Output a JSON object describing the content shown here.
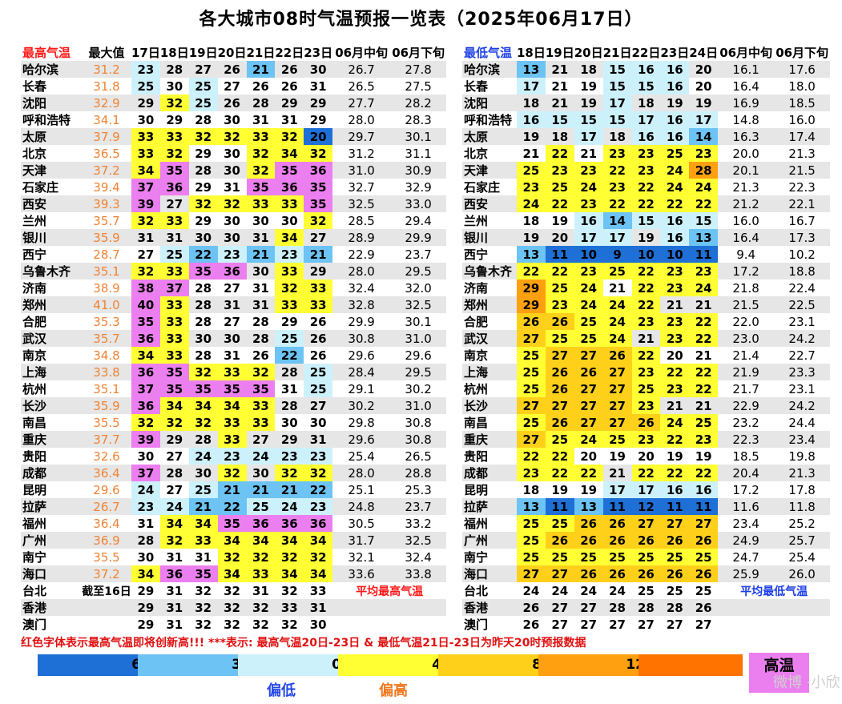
{
  "title": "各大城市08时气温预报一览表（2025年06月17日）",
  "max_table": {
    "header_label": "最高气温",
    "header_max": "最大值",
    "headers": [
      "17日",
      "18日",
      "19日",
      "20日",
      "21日",
      "22日",
      "23日",
      "06月中旬",
      "06月下旬"
    ],
    "rows": [
      {
        "city": "哈尔滨",
        "max": "31.2",
        "vals": [
          23,
          28,
          27,
          26,
          21,
          26,
          30
        ],
        "mid": "26.7",
        "late": "27.8"
      },
      {
        "city": "长春",
        "max": "31.8",
        "vals": [
          25,
          30,
          25,
          27,
          26,
          26,
          31
        ],
        "mid": "26.5",
        "late": "27.5"
      },
      {
        "city": "沈阳",
        "max": "32.9",
        "vals": [
          29,
          32,
          25,
          26,
          28,
          29,
          29
        ],
        "mid": "27.7",
        "late": "28.2"
      },
      {
        "city": "呼和浩特",
        "max": "34.1",
        "vals": [
          30,
          29,
          28,
          30,
          31,
          31,
          29
        ],
        "mid": "28.0",
        "late": "28.3"
      },
      {
        "city": "太原",
        "max": "37.9",
        "vals": [
          33,
          33,
          32,
          32,
          33,
          32,
          20
        ],
        "mid": "29.7",
        "late": "30.1"
      },
      {
        "city": "北京",
        "max": "36.5",
        "vals": [
          33,
          32,
          29,
          30,
          32,
          34,
          32
        ],
        "mid": "31.2",
        "late": "31.1"
      },
      {
        "city": "天津",
        "max": "37.2",
        "vals": [
          34,
          35,
          28,
          30,
          32,
          35,
          36
        ],
        "mid": "31.0",
        "late": "30.9"
      },
      {
        "city": "石家庄",
        "max": "39.4",
        "vals": [
          37,
          36,
          29,
          31,
          35,
          36,
          35
        ],
        "mid": "32.7",
        "late": "32.9"
      },
      {
        "city": "西安",
        "max": "39.3",
        "vals": [
          39,
          27,
          32,
          32,
          33,
          33,
          35
        ],
        "mid": "32.5",
        "late": "33.0"
      },
      {
        "city": "兰州",
        "max": "35.7",
        "vals": [
          32,
          33,
          29,
          30,
          30,
          30,
          32
        ],
        "mid": "28.5",
        "late": "29.4"
      },
      {
        "city": "银川",
        "max": "35.9",
        "vals": [
          31,
          31,
          30,
          30,
          31,
          34,
          27
        ],
        "mid": "28.9",
        "late": "29.9"
      },
      {
        "city": "西宁",
        "max": "28.7",
        "vals": [
          27,
          25,
          22,
          23,
          21,
          23,
          21
        ],
        "mid": "22.9",
        "late": "23.7"
      },
      {
        "city": "乌鲁木齐",
        "max": "35.1",
        "vals": [
          32,
          33,
          35,
          36,
          30,
          33,
          29
        ],
        "mid": "28.0",
        "late": "29.5"
      },
      {
        "city": "济南",
        "max": "38.9",
        "vals": [
          38,
          37,
          28,
          27,
          31,
          32,
          33
        ],
        "mid": "32.4",
        "late": "32.0"
      },
      {
        "city": "郑州",
        "max": "41.0",
        "vals": [
          40,
          33,
          28,
          31,
          31,
          33,
          33
        ],
        "mid": "32.8",
        "late": "32.5"
      },
      {
        "city": "合肥",
        "max": "35.3",
        "vals": [
          35,
          33,
          28,
          27,
          28,
          29,
          26
        ],
        "mid": "29.9",
        "late": "30.1"
      },
      {
        "city": "武汉",
        "max": "35.7",
        "vals": [
          36,
          33,
          30,
          30,
          28,
          25,
          26
        ],
        "mid": "30.8",
        "late": "31.0"
      },
      {
        "city": "南京",
        "max": "34.8",
        "vals": [
          34,
          33,
          28,
          31,
          26,
          22,
          26
        ],
        "mid": "29.6",
        "late": "29.6"
      },
      {
        "city": "上海",
        "max": "33.8",
        "vals": [
          36,
          35,
          32,
          33,
          32,
          28,
          25
        ],
        "mid": "28.4",
        "late": "29.5"
      },
      {
        "city": "杭州",
        "max": "35.1",
        "vals": [
          37,
          35,
          35,
          35,
          35,
          31,
          25
        ],
        "mid": "29.1",
        "late": "30.2"
      },
      {
        "city": "长沙",
        "max": "35.9",
        "vals": [
          36,
          34,
          34,
          34,
          33,
          28,
          27
        ],
        "mid": "30.2",
        "late": "31.0"
      },
      {
        "city": "南昌",
        "max": "35.5",
        "vals": [
          32,
          32,
          32,
          33,
          33,
          30,
          30
        ],
        "mid": "29.8",
        "late": "30.8"
      },
      {
        "city": "重庆",
        "max": "37.7",
        "vals": [
          39,
          29,
          28,
          33,
          27,
          29,
          31
        ],
        "mid": "29.6",
        "late": "30.8"
      },
      {
        "city": "贵阳",
        "max": "32.6",
        "vals": [
          30,
          27,
          24,
          23,
          24,
          23,
          23
        ],
        "mid": "25.4",
        "late": "26.5"
      },
      {
        "city": "成都",
        "max": "36.4",
        "vals": [
          37,
          28,
          30,
          32,
          30,
          32,
          32
        ],
        "mid": "28.0",
        "late": "28.8"
      },
      {
        "city": "昆明",
        "max": "29.6",
        "vals": [
          24,
          27,
          25,
          21,
          21,
          21,
          22
        ],
        "mid": "25.1",
        "late": "25.3"
      },
      {
        "city": "拉萨",
        "max": "26.7",
        "vals": [
          23,
          24,
          21,
          22,
          25,
          24,
          23
        ],
        "mid": "24.8",
        "late": "23.7"
      },
      {
        "city": "福州",
        "max": "36.4",
        "vals": [
          31,
          34,
          34,
          35,
          36,
          36,
          36
        ],
        "mid": "30.5",
        "late": "33.2"
      },
      {
        "city": "广州",
        "max": "36.9",
        "vals": [
          28,
          32,
          33,
          34,
          34,
          34,
          34
        ],
        "mid": "31.7",
        "late": "32.5"
      },
      {
        "city": "南宁",
        "max": "35.5",
        "vals": [
          30,
          31,
          31,
          32,
          32,
          32,
          32
        ],
        "mid": "32.1",
        "late": "32.4"
      },
      {
        "city": "海口",
        "max": "37.2",
        "vals": [
          34,
          36,
          35,
          34,
          33,
          34,
          34
        ],
        "mid": "33.6",
        "late": "33.8"
      }
    ],
    "extra_rows": [
      {
        "city": "台北",
        "max": "截至16日",
        "vals": [
          29,
          31,
          32,
          32,
          31,
          32,
          33
        ],
        "note": "平均最高气温"
      },
      {
        "city": "香港",
        "max": "",
        "vals": [
          29,
          31,
          32,
          32,
          32,
          33,
          31
        ],
        "note": ""
      },
      {
        "city": "澳门",
        "max": "",
        "vals": [
          29,
          31,
          32,
          32,
          32,
          32,
          30
        ],
        "note": ""
      }
    ]
  },
  "min_table": {
    "header_label": "最低气温",
    "headers": [
      "18日",
      "19日",
      "20日",
      "21日",
      "22日",
      "23日",
      "24日",
      "06月中旬",
      "06月下旬"
    ],
    "rows": [
      {
        "city": "哈尔滨",
        "vals": [
          13,
          21,
          18,
          15,
          16,
          16,
          20
        ],
        "mid": "16.1",
        "late": "17.6"
      },
      {
        "city": "长春",
        "vals": [
          17,
          21,
          19,
          15,
          15,
          16,
          20
        ],
        "mid": "16.4",
        "late": "18.0"
      },
      {
        "city": "沈阳",
        "vals": [
          18,
          21,
          19,
          17,
          18,
          19,
          19
        ],
        "mid": "16.9",
        "late": "18.5"
      },
      {
        "city": "呼和浩特",
        "vals": [
          16,
          15,
          15,
          15,
          17,
          16,
          17
        ],
        "mid": "14.8",
        "late": "16.0"
      },
      {
        "city": "太原",
        "vals": [
          19,
          18,
          17,
          18,
          16,
          16,
          14
        ],
        "mid": "16.3",
        "late": "17.4"
      },
      {
        "city": "北京",
        "vals": [
          21,
          22,
          21,
          23,
          23,
          25,
          23
        ],
        "mid": "20.0",
        "late": "21.3"
      },
      {
        "city": "天津",
        "vals": [
          25,
          23,
          23,
          22,
          23,
          24,
          28
        ],
        "mid": "20.1",
        "late": "21.5"
      },
      {
        "city": "石家庄",
        "vals": [
          23,
          25,
          24,
          23,
          22,
          24,
          24
        ],
        "mid": "21.3",
        "late": "22.3"
      },
      {
        "city": "西安",
        "vals": [
          24,
          22,
          23,
          22,
          22,
          22,
          22
        ],
        "mid": "21.2",
        "late": "22.1"
      },
      {
        "city": "兰州",
        "vals": [
          18,
          19,
          16,
          14,
          15,
          16,
          15
        ],
        "mid": "16.0",
        "late": "16.7"
      },
      {
        "city": "银川",
        "vals": [
          19,
          20,
          17,
          17,
          19,
          16,
          13
        ],
        "mid": "16.4",
        "late": "17.3"
      },
      {
        "city": "西宁",
        "vals": [
          13,
          11,
          10,
          9,
          10,
          10,
          11
        ],
        "mid": "9.4",
        "late": "10.2"
      },
      {
        "city": "乌鲁木齐",
        "vals": [
          22,
          22,
          23,
          25,
          22,
          23,
          23
        ],
        "mid": "17.2",
        "late": "18.8"
      },
      {
        "city": "济南",
        "vals": [
          29,
          25,
          24,
          21,
          22,
          23,
          24
        ],
        "mid": "21.8",
        "late": "22.4"
      },
      {
        "city": "郑州",
        "vals": [
          29,
          23,
          24,
          24,
          22,
          21,
          21
        ],
        "mid": "21.5",
        "late": "22.5"
      },
      {
        "city": "合肥",
        "vals": [
          26,
          26,
          25,
          24,
          23,
          23,
          22
        ],
        "mid": "22.0",
        "late": "23.1"
      },
      {
        "city": "武汉",
        "vals": [
          27,
          25,
          25,
          24,
          21,
          23,
          22
        ],
        "mid": "23.0",
        "late": "24.2"
      },
      {
        "city": "南京",
        "vals": [
          25,
          27,
          27,
          26,
          22,
          20,
          21
        ],
        "mid": "21.4",
        "late": "22.7"
      },
      {
        "city": "上海",
        "vals": [
          25,
          26,
          26,
          27,
          23,
          22,
          22
        ],
        "mid": "21.9",
        "late": "23.3"
      },
      {
        "city": "杭州",
        "vals": [
          25,
          26,
          27,
          27,
          25,
          23,
          22
        ],
        "mid": "21.7",
        "late": "23.1"
      },
      {
        "city": "长沙",
        "vals": [
          27,
          27,
          27,
          27,
          23,
          21,
          21
        ],
        "mid": "22.9",
        "late": "24.2"
      },
      {
        "city": "南昌",
        "vals": [
          25,
          26,
          27,
          27,
          26,
          24,
          25
        ],
        "mid": "23.2",
        "late": "24.4"
      },
      {
        "city": "重庆",
        "vals": [
          27,
          25,
          24,
          25,
          23,
          22,
          23
        ],
        "mid": "22.3",
        "late": "23.4"
      },
      {
        "city": "贵阳",
        "vals": [
          22,
          22,
          20,
          19,
          20,
          19,
          19
        ],
        "mid": "18.5",
        "late": "19.8"
      },
      {
        "city": "成都",
        "vals": [
          23,
          22,
          22,
          21,
          22,
          22,
          22
        ],
        "mid": "20.4",
        "late": "21.3"
      },
      {
        "city": "昆明",
        "vals": [
          18,
          19,
          19,
          17,
          17,
          16,
          16
        ],
        "mid": "17.2",
        "late": "17.8"
      },
      {
        "city": "拉萨",
        "vals": [
          13,
          11,
          13,
          11,
          12,
          11,
          11
        ],
        "mid": "11.6",
        "late": "11.8"
      },
      {
        "city": "福州",
        "vals": [
          25,
          25,
          26,
          26,
          27,
          27,
          27
        ],
        "mid": "23.4",
        "late": "25.2"
      },
      {
        "city": "广州",
        "vals": [
          25,
          26,
          26,
          26,
          26,
          26,
          26
        ],
        "mid": "24.9",
        "late": "25.7"
      },
      {
        "city": "南宁",
        "vals": [
          25,
          25,
          25,
          25,
          25,
          25,
          25
        ],
        "mid": "24.7",
        "late": "25.4"
      },
      {
        "city": "海口",
        "vals": [
          27,
          27,
          26,
          26,
          26,
          26,
          26
        ],
        "mid": "25.9",
        "late": "26.0"
      }
    ],
    "extra_rows": [
      {
        "city": "台北",
        "vals": [
          24,
          24,
          24,
          24,
          25,
          25,
          25
        ],
        "note": "平均最低气温"
      },
      {
        "city": "香港",
        "vals": [
          26,
          27,
          27,
          28,
          28,
          28,
          26
        ],
        "note": ""
      },
      {
        "city": "澳门",
        "vals": [
          26,
          27,
          27,
          27,
          27,
          27,
          27
        ],
        "note": ""
      }
    ]
  },
  "footnote": "红色字体表示最高气温即将创新高!!! ***表示: 最高气温20日-23日 & 最低气温21日-23日为昨天20时预报数据",
  "legend": {
    "ticks": [
      "6",
      "3",
      "0",
      "4",
      "8",
      "12"
    ],
    "hot_label": "高温",
    "low_label": "偏低",
    "high_label": "偏高",
    "watermark": "微博 ·小欣"
  },
  "colors": {
    "deep_blue": "#1e6fd6",
    "mid_blue": "#6cc3f4",
    "light_cyan": "#cdf1fb",
    "yellow": "#ffff33",
    "light_orange": "#ffd01a",
    "orange": "#ffa010",
    "dark_orange": "#ff7300",
    "hot_pink": "#ec7fef",
    "max_value_text": "#f08232"
  }
}
